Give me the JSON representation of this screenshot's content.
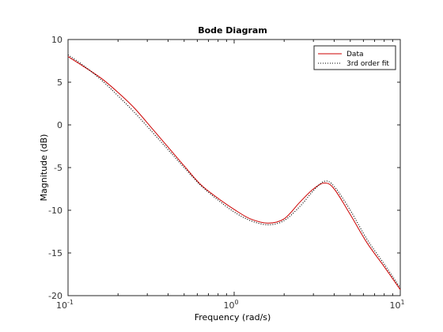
{
  "chart_data": {
    "type": "line",
    "title": "Bode Diagram",
    "xlabel": "Frequency  (rad/s)",
    "ylabel": "Magnitude (dB)",
    "xscale": "log",
    "xlim": [
      0.1,
      10
    ],
    "ylim": [
      -20,
      10
    ],
    "xticks": [
      0.1,
      1,
      10
    ],
    "xtick_labels": [
      {
        "base": "10",
        "exp": "-1"
      },
      {
        "base": "10",
        "exp": "0"
      },
      {
        "base": "10",
        "exp": "1"
      }
    ],
    "yticks": [
      10,
      5,
      0,
      -5,
      -10,
      -15,
      -20
    ],
    "grid": false,
    "legend_position": "top-right",
    "series": [
      {
        "name": "Data",
        "color": "#cc0000",
        "style": "solid",
        "x": [
          0.1,
          0.125,
          0.16,
          0.2,
          0.25,
          0.32,
          0.4,
          0.5,
          0.63,
          0.8,
          1.0,
          1.25,
          1.6,
          2.0,
          2.5,
          3.0,
          3.5,
          4.0,
          5.0,
          6.3,
          8.0,
          10.0
        ],
        "y": [
          8.0,
          6.8,
          5.4,
          3.8,
          2.0,
          -0.4,
          -2.6,
          -4.8,
          -7.0,
          -8.6,
          -9.9,
          -11.0,
          -11.5,
          -11.0,
          -9.0,
          -7.5,
          -6.8,
          -7.5,
          -10.5,
          -13.8,
          -16.6,
          -19.3
        ]
      },
      {
        "name": "3rd order fit",
        "color": "#000000",
        "style": "dotted",
        "x": [
          0.1,
          0.125,
          0.16,
          0.2,
          0.25,
          0.32,
          0.4,
          0.5,
          0.63,
          0.8,
          1.0,
          1.25,
          1.6,
          2.0,
          2.5,
          3.0,
          3.5,
          4.0,
          5.0,
          6.3,
          8.0,
          10.0
        ],
        "y": [
          8.2,
          6.9,
          5.2,
          3.4,
          1.5,
          -0.8,
          -2.9,
          -5.0,
          -7.1,
          -8.8,
          -10.2,
          -11.2,
          -11.7,
          -11.2,
          -9.5,
          -7.7,
          -6.6,
          -7.2,
          -10.0,
          -13.4,
          -16.3,
          -19.1
        ]
      }
    ]
  }
}
